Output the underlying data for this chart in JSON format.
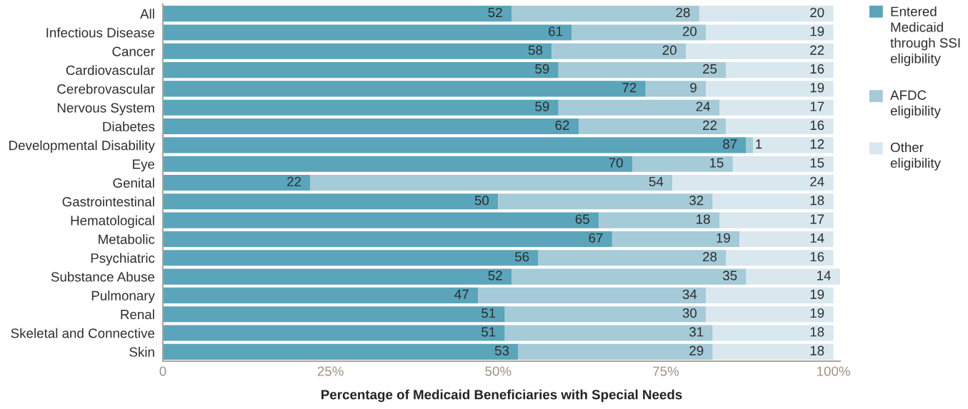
{
  "chart_data": {
    "type": "bar",
    "orientation": "horizontal",
    "stacked": true,
    "xlabel": "Percentage of Medicaid Beneficiaries with Special Needs",
    "categories": [
      "All",
      "Infectious Disease",
      "Cancer",
      "Cardiovascular",
      "Cerebrovascular",
      "Nervous System",
      "Diabetes",
      "Developmental Disability",
      "Eye",
      "Genital",
      "Gastrointestinal",
      "Hematological",
      "Metabolic",
      "Psychiatric",
      "Substance Abuse",
      "Pulmonary",
      "Renal",
      "Skeletal and Connective",
      "Skin"
    ],
    "series": [
      {
        "name": "Entered Medicaid through SSI eligibility",
        "color": "#5aa5ba",
        "values": [
          52,
          61,
          58,
          59,
          72,
          59,
          62,
          87,
          70,
          22,
          50,
          65,
          67,
          56,
          52,
          47,
          51,
          51,
          53
        ]
      },
      {
        "name": "AFDC eligibility",
        "color": "#a5cad8",
        "values": [
          28,
          20,
          20,
          25,
          9,
          24,
          22,
          1,
          15,
          54,
          32,
          18,
          19,
          28,
          35,
          34,
          30,
          31,
          29
        ]
      },
      {
        "name": "Other eligibility",
        "color": "#d9e8ee",
        "values": [
          20,
          19,
          22,
          16,
          19,
          17,
          16,
          12,
          15,
          24,
          18,
          17,
          14,
          16,
          14,
          19,
          19,
          18,
          18
        ]
      }
    ],
    "xlim": [
      0,
      101
    ],
    "xticks": [
      0,
      {
        "value": 25,
        "label": "25%"
      },
      {
        "value": 50,
        "label": "50%"
      },
      {
        "value": 75,
        "label": "75%"
      },
      {
        "value": 100,
        "label": "100%"
      }
    ],
    "data_labels": true,
    "legend": "right",
    "grid": false
  }
}
